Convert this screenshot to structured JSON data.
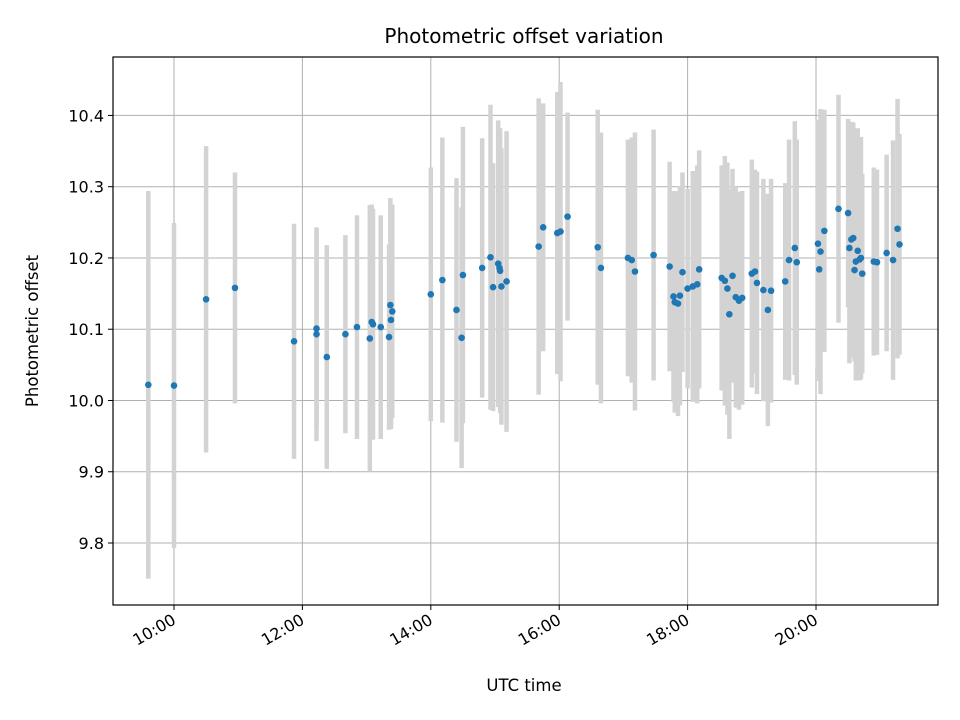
{
  "chart_data": {
    "type": "scatter",
    "title": "Photometric offset variation",
    "xlabel": "UTC time",
    "ylabel": "Photometric offset",
    "x_unit": "hours UTC",
    "xlim": [
      9.05,
      21.9
    ],
    "ylim": [
      9.713,
      10.482
    ],
    "xticks": [
      10,
      12,
      14,
      16,
      18,
      20
    ],
    "xtick_labels": [
      "10:00",
      "12:00",
      "14:00",
      "16:00",
      "18:00",
      "20:00"
    ],
    "yticks": [
      9.8,
      9.9,
      10.0,
      10.1,
      10.2,
      10.3,
      10.4
    ],
    "ytick_labels": [
      "9.8",
      "9.9",
      "10.0",
      "10.1",
      "10.2",
      "10.3",
      "10.4"
    ],
    "grid": true,
    "colors": {
      "point": "#1f77b4",
      "errorbar": "#d3d3d3",
      "grid": "#b0b0b0"
    },
    "x": [
      9.6,
      10.0,
      10.5,
      10.95,
      11.87,
      12.22,
      12.22,
      12.38,
      12.67,
      12.85,
      13.05,
      13.08,
      13.1,
      13.22,
      13.35,
      13.37,
      13.38,
      13.4,
      14.0,
      14.18,
      14.4,
      14.48,
      14.5,
      14.8,
      14.93,
      14.97,
      15.05,
      15.07,
      15.08,
      15.1,
      15.18,
      15.68,
      15.75,
      15.97,
      16.02,
      16.13,
      16.6,
      16.65,
      17.07,
      17.13,
      17.18,
      17.47,
      17.72,
      17.78,
      17.8,
      17.85,
      17.88,
      17.92,
      18.0,
      18.08,
      18.15,
      18.18,
      18.53,
      18.58,
      18.62,
      18.65,
      18.7,
      18.75,
      18.8,
      18.85,
      19.0,
      19.05,
      19.08,
      19.18,
      19.25,
      19.3,
      19.52,
      19.58,
      19.67,
      19.7,
      20.03,
      20.05,
      20.07,
      20.13,
      20.35,
      20.5,
      20.52,
      20.55,
      20.58,
      20.6,
      20.62,
      20.65,
      20.68,
      20.7,
      20.72,
      20.9,
      20.95,
      21.1,
      21.2,
      21.27,
      21.3
    ],
    "y": [
      10.022,
      10.021,
      10.142,
      10.158,
      10.083,
      10.101,
      10.093,
      10.061,
      10.093,
      10.103,
      10.087,
      10.11,
      10.107,
      10.103,
      10.089,
      10.134,
      10.113,
      10.125,
      10.149,
      10.169,
      10.127,
      10.088,
      10.176,
      10.186,
      10.201,
      10.159,
      10.192,
      10.186,
      10.182,
      10.16,
      10.167,
      10.216,
      10.243,
      10.235,
      10.237,
      10.258,
      10.215,
      10.186,
      10.2,
      10.197,
      10.181,
      10.204,
      10.188,
      10.146,
      10.138,
      10.136,
      10.147,
      10.18,
      10.157,
      10.16,
      10.163,
      10.184,
      10.172,
      10.168,
      10.157,
      10.121,
      10.175,
      10.145,
      10.14,
      10.144,
      10.178,
      10.181,
      10.165,
      10.155,
      10.127,
      10.154,
      10.167,
      10.197,
      10.214,
      10.194,
      10.22,
      10.184,
      10.209,
      10.238,
      10.269,
      10.263,
      10.214,
      10.226,
      10.228,
      10.183,
      10.195,
      10.21,
      10.198,
      10.2,
      10.178,
      10.195,
      10.194,
      10.207,
      10.197,
      10.241,
      10.219
    ],
    "yerr": [
      0.272,
      0.228,
      0.215,
      0.162,
      0.165,
      0.141,
      0.15,
      0.157,
      0.139,
      0.157,
      0.187,
      0.165,
      0.162,
      0.157,
      0.13,
      0.15,
      0.153,
      0.15,
      0.178,
      0.2,
      0.185,
      0.183,
      0.208,
      0.182,
      0.214,
      0.174,
      0.201,
      0.195,
      0.2,
      0.194,
      0.211,
      0.208,
      0.174,
      0.198,
      0.21,
      0.146,
      0.193,
      0.19,
      0.166,
      0.172,
      0.195,
      0.176,
      0.147,
      0.148,
      0.155,
      0.158,
      0.154,
      0.14,
      0.14,
      0.162,
      0.167,
      0.167,
      0.158,
      0.175,
      0.177,
      0.175,
      0.15,
      0.155,
      0.153,
      0.15,
      0.16,
      0.143,
      0.156,
      0.156,
      0.163,
      0.157,
      0.138,
      0.169,
      0.178,
      0.172,
      0.174,
      0.157,
      0.2,
      0.17,
      0.16,
      0.132,
      0.162,
      0.165,
      0.162,
      0.128,
      0.167,
      0.172,
      0.17,
      0.17,
      0.14,
      0.132,
      0.13,
      0.138,
      0.168,
      0.182,
      0.155
    ]
  }
}
